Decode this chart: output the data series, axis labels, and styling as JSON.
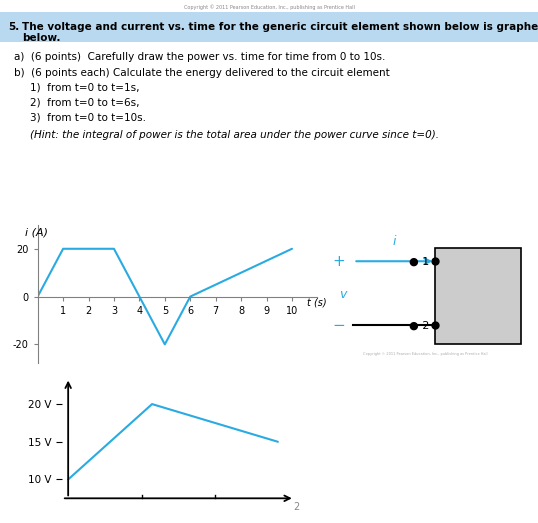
{
  "title_text": "Copyright © 2011 Pearson Education, Inc., publishing as Prentice Hall",
  "question_number": "5.",
  "question_text_line1": "The voltage and current vs. time for the generic circuit element shown below is graphed",
  "question_text_line2": "below.",
  "sub_a": "a)  (6 points)  Carefully draw the power vs. time for time from 0 to 10s.",
  "sub_b": "b)  (6 points each) Calculate the energy delivered to the circuit element",
  "sub_b1": "1)  from t=0 to t=1s,",
  "sub_b2": "2)  from t=0 to t=6s,",
  "sub_b3": "3)  from t=0 to t=10s.",
  "sub_b_hint": "(Hint: the integral of power is the total area under the power curve since t=0).",
  "current_t": [
    0,
    1,
    2,
    3,
    4,
    5,
    6,
    10
  ],
  "current_i": [
    0,
    20,
    20,
    20,
    0,
    -20,
    0,
    20
  ],
  "current_color": "#29ABE2",
  "voltage_t": [
    0,
    4,
    10
  ],
  "voltage_v": [
    10,
    20,
    15
  ],
  "voltage_color": "#29ABE2",
  "bg_color": "#ffffff",
  "highlight_color": "#b8d9f0",
  "page_number": "2",
  "circuit_copyright": "Copyright © 2011 Pearson Education, Inc., publishing as Prentice Hall"
}
